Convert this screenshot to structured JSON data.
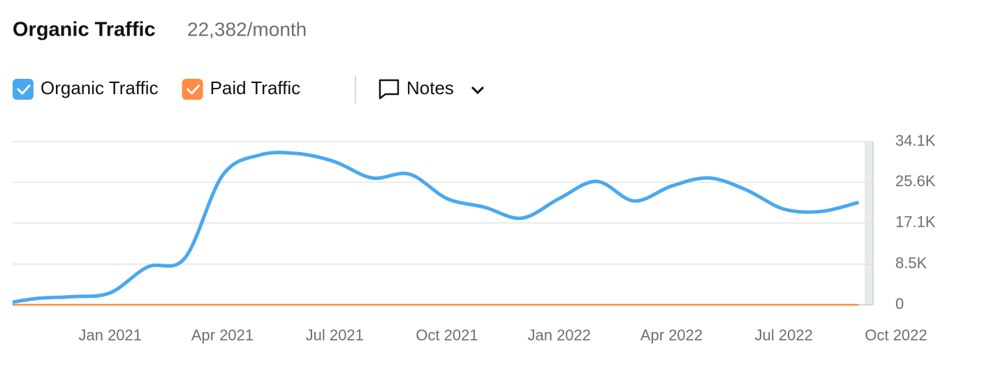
{
  "chart_data": {
    "type": "line",
    "title": "Organic Traffic",
    "subtitle": "22,382/month",
    "x": [
      "2020-10",
      "2020-11",
      "2020-12",
      "2021-01",
      "2021-02",
      "2021-03",
      "2021-04",
      "2021-05",
      "2021-06",
      "2021-07",
      "2021-08",
      "2021-09",
      "2021-10",
      "2021-11",
      "2021-12",
      "2022-01",
      "2022-02",
      "2022-03",
      "2022-04",
      "2022-05",
      "2022-06",
      "2022-07",
      "2022-08",
      "2022-09"
    ],
    "series": [
      {
        "name": "Organic Traffic",
        "color": "#4aa8f0",
        "values": [
          0,
          1300,
          1700,
          2500,
          7900,
          9800,
          27000,
          31300,
          31600,
          29900,
          26500,
          27300,
          22200,
          20400,
          18100,
          22200,
          25800,
          21700,
          24800,
          26500,
          24000,
          20000,
          19500,
          21400
        ]
      },
      {
        "name": "Paid Traffic",
        "color": "#ff8c42",
        "values": [
          0,
          0,
          0,
          0,
          0,
          0,
          0,
          0,
          0,
          0,
          0,
          0,
          0,
          0,
          0,
          0,
          0,
          0,
          0,
          0,
          0,
          0,
          0,
          0
        ]
      }
    ],
    "xlim": [
      "2020-10",
      "2022-10"
    ],
    "xticks": [
      {
        "value": "2021-01",
        "label": "Jan 2021"
      },
      {
        "value": "2021-04",
        "label": "Apr 2021"
      },
      {
        "value": "2021-07",
        "label": "Jul 2021"
      },
      {
        "value": "2021-10",
        "label": "Oct 2021"
      },
      {
        "value": "2022-01",
        "label": "Jan 2022"
      },
      {
        "value": "2022-04",
        "label": "Apr 2022"
      },
      {
        "value": "2022-07",
        "label": "Jul 2022"
      },
      {
        "value": "2022-10",
        "label": "Oct 2022"
      }
    ],
    "ylim": [
      0,
      34100
    ],
    "yticks": [
      0,
      {
        "value": 8500,
        "label": "8.5K"
      },
      {
        "value": 17100,
        "label": "17.1K"
      },
      {
        "value": 25600,
        "label": "25.6K"
      },
      {
        "value": 34100,
        "label": "34.1K"
      }
    ],
    "grid": true
  },
  "controls": {
    "notes": "Notes"
  }
}
